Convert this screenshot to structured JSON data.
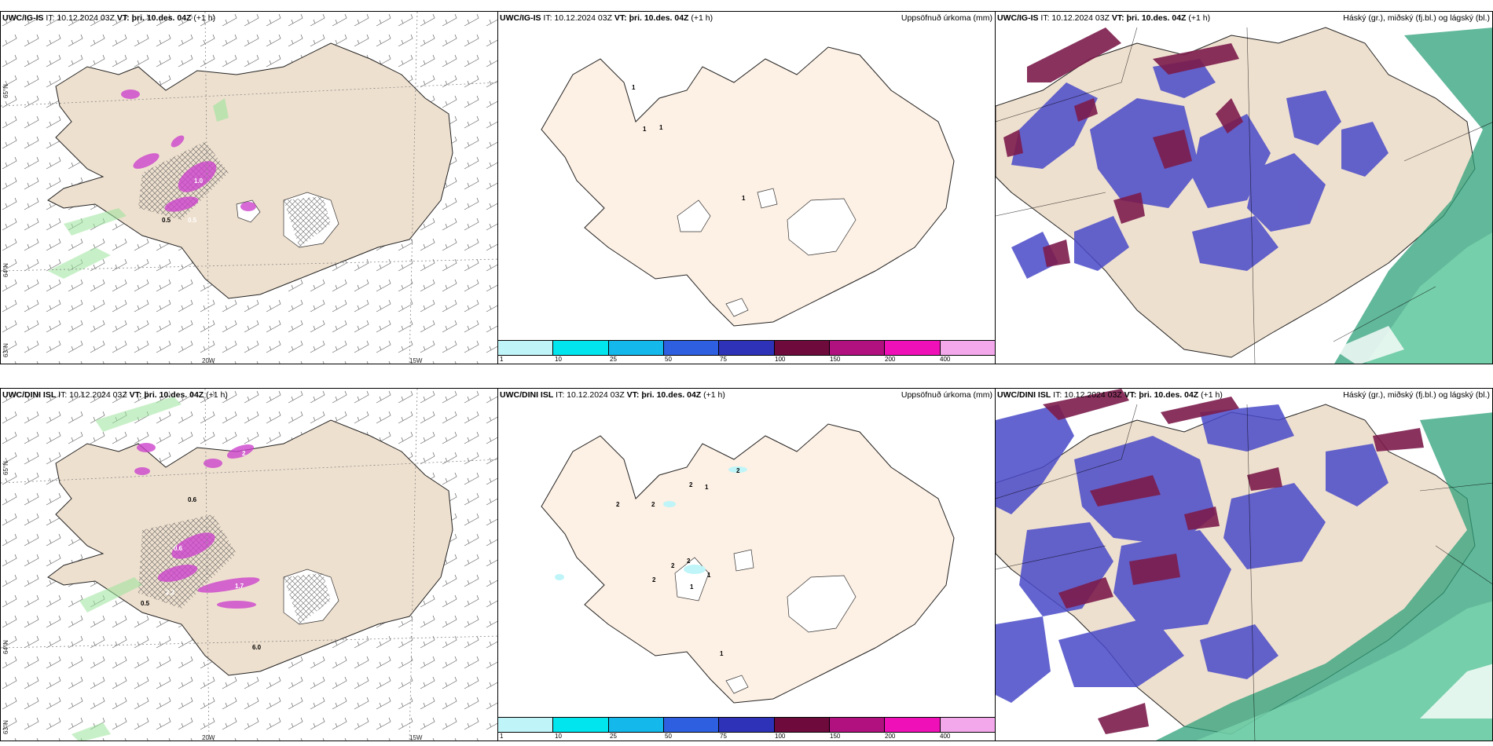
{
  "rows": [
    {
      "model": "UWC/IG-IS",
      "panels": {
        "wind": {
          "model": "UWC/IG-IS",
          "it": "IT: 10.12.2024 03Z",
          "vt_label": "VT:",
          "vt_value": "þri. 10.des. 04Z",
          "lead": "(+1 h)",
          "right_label": ""
        },
        "precip": {
          "model": "UWC/IG-IS",
          "it": "IT: 10.12.2024 03Z",
          "vt_label": "VT:",
          "vt_value": "þri. 10.des. 04Z",
          "lead": "(+1 h)",
          "right_label": "Uppsöfnuð úrkoma (mm)"
        },
        "cloud": {
          "model": "UWC/IG-IS",
          "it": "IT: 10.12.2024 03Z",
          "vt_label": "VT:",
          "vt_value": "þri. 10.des. 04Z",
          "lead": "(+1 h)",
          "right_label": "Háský (gr.), miðský (fj.bl.) og lágský (bl.)"
        }
      },
      "wind_contours": [
        "1.0",
        "0.5",
        "0.5"
      ],
      "precip_labels": [
        "1",
        "1",
        "1",
        "1"
      ]
    },
    {
      "model": "UWC/DINI ISL",
      "panels": {
        "wind": {
          "model": "UWC/DINI ISL",
          "it": "IT: 10.12.2024 03Z",
          "vt_label": "VT:",
          "vt_value": "þri. 10.des. 04Z",
          "lead": "(+1 h)",
          "right_label": ""
        },
        "precip": {
          "model": "UWC/DINI ISL",
          "it": "IT: 10.12.2024 03Z",
          "vt_label": "VT:",
          "vt_value": "þri. 10.des. 04Z",
          "lead": "(+1 h)",
          "right_label": "Uppsöfnuð úrkoma (mm)"
        },
        "cloud": {
          "model": "UWC/DINI ISL",
          "it": "IT: 10.12.2024 03Z",
          "vt_label": "VT:",
          "vt_value": "þri. 10.des. 04Z",
          "lead": "(+1 h)",
          "right_label": "Háský (gr.), miðský (fj.bl.) og lágský (bl.)"
        }
      },
      "wind_contours": [
        "2",
        "0.6",
        "0.6",
        "0.5",
        "2.2",
        "1.7",
        "6.0"
      ],
      "precip_labels": [
        "2",
        "1",
        "2",
        "2",
        "2",
        "2",
        "2",
        "1",
        "2",
        "1",
        "1"
      ]
    }
  ],
  "axis_labels": {
    "lat_65": "65°N",
    "lat_64": "64°N",
    "lat_63": "63°N",
    "lon_20w": "20W",
    "lon_15w": "15W"
  },
  "colorbar": {
    "ticks": [
      "1",
      "10",
      "25",
      "50",
      "75",
      "100",
      "150",
      "200",
      "400"
    ],
    "colors": [
      "#bff5f8",
      "#00e5ee",
      "#14b8ea",
      "#2d5fe0",
      "#2e32b8",
      "#6e0a3c",
      "#b0117e",
      "#f010b8",
      "#f4a8ec"
    ]
  },
  "colors": {
    "land": "#eee0cf",
    "land_precip": "#fdf0e4",
    "snow_high": "#7c1c4c",
    "cloud_mid": "#4a4ac8",
    "cloud_low": "#2ea07a",
    "precip_pink": "#cc44cc"
  }
}
